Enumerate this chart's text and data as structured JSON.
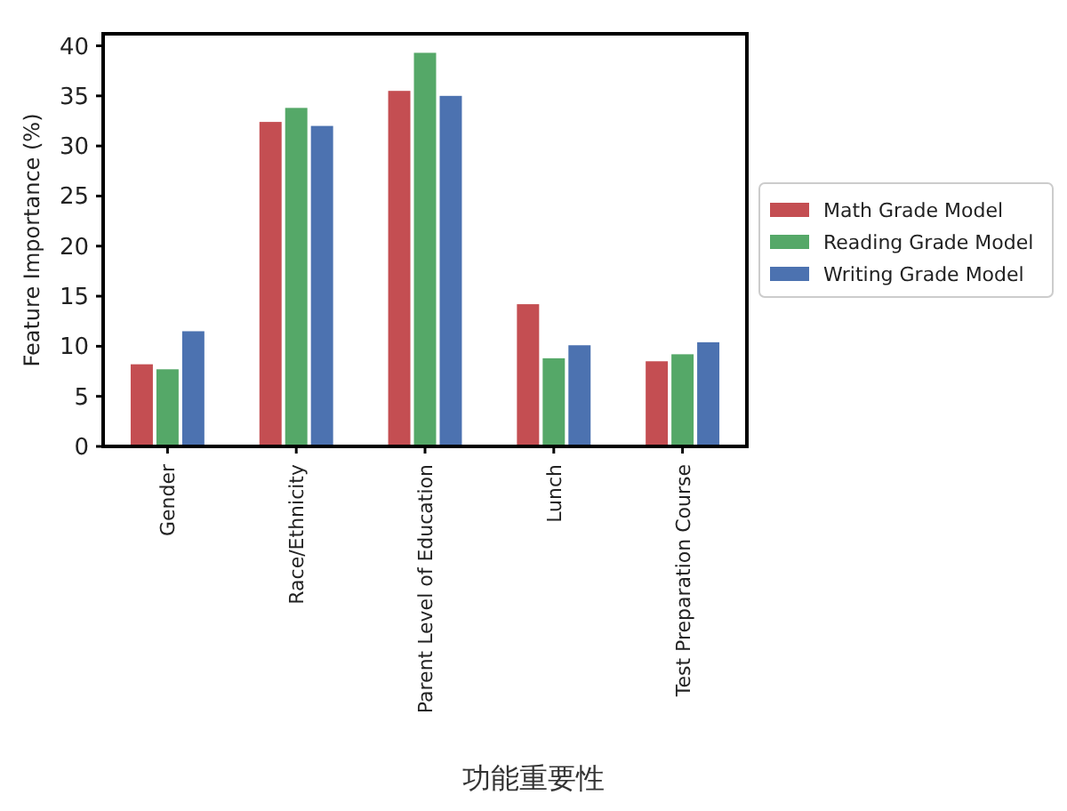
{
  "chart_data": {
    "type": "bar",
    "ylabel": "Feature Importance (%)",
    "xlabel": "功能重要性",
    "categories": [
      "Gender",
      "Race/Ethnicity",
      "Parent Level of Education",
      "Lunch",
      "Test Preparation Course"
    ],
    "series": [
      {
        "name": "Math Grade Model",
        "color": "#c44e52",
        "values": [
          8.2,
          32.4,
          35.5,
          14.2,
          8.5
        ]
      },
      {
        "name": "Reading Grade Model",
        "color": "#55a868",
        "values": [
          7.7,
          33.8,
          39.3,
          8.8,
          9.2
        ]
      },
      {
        "name": "Writing Grade Model",
        "color": "#4c72b0",
        "values": [
          11.5,
          32.0,
          35.0,
          10.1,
          10.4
        ]
      }
    ],
    "ylim": [
      0,
      41.2
    ],
    "yticks": [
      0,
      5,
      10,
      15,
      20,
      25,
      30,
      35,
      40
    ],
    "grid": false,
    "legend": "right"
  }
}
